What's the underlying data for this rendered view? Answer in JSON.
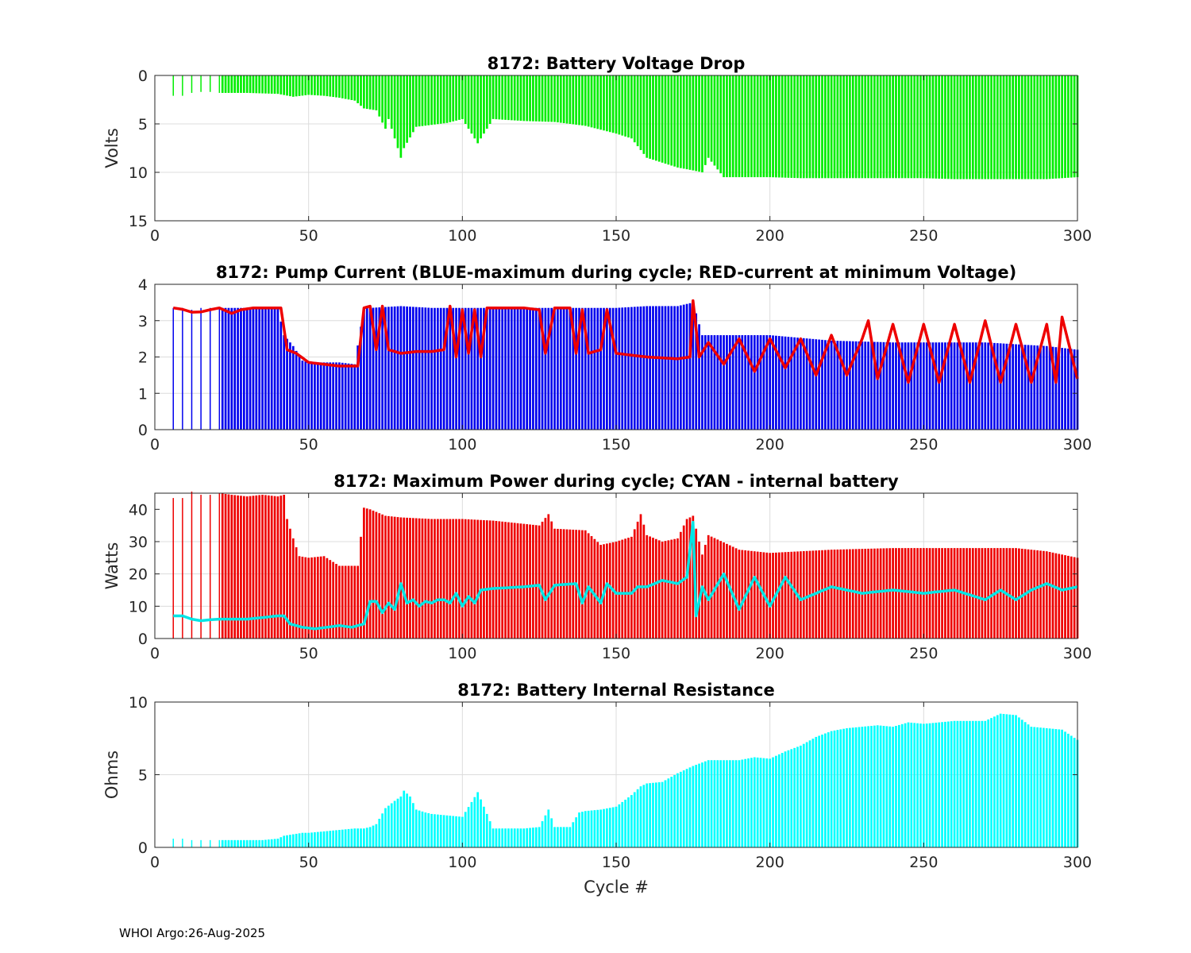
{
  "footer_text": "WHOI Argo:26-Aug-2025",
  "x_axis_label": "Cycle #",
  "colors": {
    "voltage_bars": "#00ee00",
    "current_bars": "#0000ee",
    "current_line": "#ee0000",
    "power_bars": "#ee0000",
    "power_line": "#00e5e5",
    "resistance_bars": "#00ffff",
    "grid": "#dcdcdc"
  },
  "chart_data": [
    {
      "type": "bar",
      "title": "8172: Battery Voltage Drop",
      "ylabel": "Volts",
      "xlabel": "",
      "xlim": [
        0,
        300
      ],
      "ylim": [
        0,
        15
      ],
      "y_reversed": true,
      "xticks": [
        0,
        50,
        100,
        150,
        200,
        250,
        300
      ],
      "yticks": [
        0,
        5,
        10,
        15
      ],
      "grid": true,
      "legend": "none",
      "series": [
        {
          "name": "Voltage drop (V)",
          "kind": "bar",
          "sample_note": "values per cycle, estimated from chart",
          "x": [
            6,
            9,
            12,
            15,
            18,
            21,
            30,
            40,
            45,
            50,
            55,
            60,
            65,
            68,
            70,
            72,
            75,
            76,
            78,
            80,
            81,
            85,
            90,
            95,
            100,
            105,
            110,
            120,
            130,
            140,
            150,
            155,
            160,
            165,
            170,
            175,
            178,
            180,
            185,
            190,
            195,
            200,
            210,
            220,
            230,
            240,
            250,
            260,
            270,
            280,
            290,
            300
          ],
          "values": [
            2.1,
            2.1,
            1.8,
            1.7,
            1.7,
            1.8,
            1.8,
            1.9,
            2.2,
            2.0,
            2.1,
            2.3,
            2.6,
            3.4,
            3.5,
            3.6,
            5.5,
            4.5,
            6.5,
            8.5,
            7.5,
            5.3,
            5.1,
            4.9,
            4.5,
            7.0,
            4.5,
            4.7,
            4.8,
            5.2,
            6.0,
            6.5,
            8.5,
            9.0,
            9.5,
            9.8,
            10.0,
            8.5,
            10.5,
            10.5,
            10.5,
            10.5,
            10.6,
            10.6,
            10.6,
            10.6,
            10.6,
            10.7,
            10.7,
            10.7,
            10.7,
            10.5
          ]
        }
      ]
    },
    {
      "type": "bar",
      "title": "8172: Pump Current (BLUE-maximum during cycle; RED-current at minimum Voltage)",
      "ylabel": "",
      "xlabel": "",
      "xlim": [
        0,
        300
      ],
      "ylim": [
        0,
        4
      ],
      "xticks": [
        0,
        50,
        100,
        150,
        200,
        250,
        300
      ],
      "yticks": [
        0,
        1,
        2,
        3,
        4
      ],
      "grid": true,
      "legend": "none",
      "series": [
        {
          "name": "maximum during cycle",
          "kind": "bar",
          "color_key": "current_bars",
          "x": [
            6,
            9,
            12,
            15,
            18,
            21,
            30,
            40,
            42,
            45,
            48,
            50,
            55,
            60,
            65,
            68,
            70,
            80,
            90,
            100,
            110,
            120,
            130,
            140,
            150,
            160,
            170,
            175,
            178,
            180,
            190,
            200,
            220,
            240,
            250,
            260,
            270,
            280,
            290,
            300
          ],
          "values": [
            3.35,
            3.35,
            3.3,
            3.35,
            3.35,
            3.35,
            3.35,
            3.35,
            2.6,
            2.3,
            1.9,
            1.85,
            1.85,
            1.85,
            1.8,
            3.35,
            3.35,
            3.4,
            3.35,
            3.35,
            3.35,
            3.35,
            3.35,
            3.35,
            3.35,
            3.4,
            3.4,
            3.5,
            2.6,
            2.6,
            2.6,
            2.6,
            2.45,
            2.4,
            2.4,
            2.4,
            2.4,
            2.35,
            2.3,
            2.2
          ]
        },
        {
          "name": "current at minimum Voltage",
          "kind": "line",
          "color_key": "current_line",
          "x": [
            6,
            10,
            13,
            18,
            21,
            25,
            28,
            32,
            36,
            41,
            43,
            46,
            50,
            55,
            60,
            66,
            68,
            70,
            72,
            74,
            76,
            80,
            85,
            90,
            94,
            96,
            98,
            100,
            102,
            104,
            106,
            108,
            120,
            125,
            127,
            130,
            135,
            137,
            139,
            141,
            145,
            147,
            150,
            160,
            170,
            174,
            175,
            177,
            180,
            185,
            190,
            195,
            200,
            205,
            210,
            215,
            220,
            225,
            230,
            232,
            235,
            240,
            245,
            250,
            255,
            260,
            265,
            270,
            275,
            280,
            285,
            290,
            293,
            295,
            300
          ],
          "values": [
            3.35,
            3.3,
            3.2,
            3.3,
            3.35,
            3.2,
            3.3,
            3.35,
            3.35,
            3.35,
            2.2,
            2.1,
            1.85,
            1.8,
            1.75,
            1.75,
            3.35,
            3.4,
            2.2,
            3.4,
            2.2,
            2.1,
            2.15,
            2.15,
            2.2,
            3.4,
            2.0,
            3.3,
            2.1,
            3.3,
            2.0,
            3.35,
            3.35,
            3.3,
            2.1,
            3.35,
            3.35,
            2.1,
            3.3,
            2.1,
            2.2,
            3.3,
            2.1,
            2.0,
            1.95,
            2.0,
            3.55,
            2.0,
            2.4,
            1.8,
            2.5,
            1.6,
            2.5,
            1.7,
            2.5,
            1.5,
            2.6,
            1.5,
            2.5,
            3.0,
            1.4,
            2.9,
            1.3,
            2.9,
            1.3,
            2.9,
            1.3,
            3.0,
            1.3,
            2.9,
            1.3,
            2.9,
            1.3,
            3.1,
            1.4
          ]
        }
      ]
    },
    {
      "type": "bar",
      "title": "8172: Maximum Power during cycle; CYAN - internal battery",
      "ylabel": "Watts",
      "xlabel": "",
      "xlim": [
        0,
        300
      ],
      "ylim": [
        0,
        45
      ],
      "xticks": [
        0,
        50,
        100,
        150,
        200,
        250,
        300
      ],
      "yticks": [
        0,
        10,
        20,
        30,
        40
      ],
      "grid": true,
      "legend": "none",
      "series": [
        {
          "name": "Maximum power (W)",
          "kind": "bar",
          "color_key": "power_bars",
          "x": [
            6,
            9,
            12,
            15,
            18,
            21,
            25,
            30,
            35,
            40,
            42,
            43,
            45,
            47,
            50,
            55,
            60,
            66,
            68,
            70,
            75,
            80,
            90,
            100,
            110,
            120,
            125,
            128,
            130,
            140,
            145,
            150,
            155,
            158,
            160,
            165,
            170,
            173,
            175,
            178,
            180,
            190,
            200,
            220,
            240,
            250,
            260,
            270,
            280,
            290,
            300
          ],
          "values": [
            43.5,
            43.5,
            45.5,
            44.5,
            44.5,
            45,
            44.5,
            44,
            44.5,
            44,
            44.5,
            37,
            31,
            25.5,
            25,
            25.5,
            22.5,
            22.5,
            40.5,
            40,
            38,
            37.5,
            37,
            37,
            36.5,
            35.5,
            35,
            38.5,
            34,
            33.5,
            29,
            30,
            31.5,
            38.5,
            32,
            30,
            31,
            37,
            38,
            26,
            32,
            27.5,
            26.5,
            27.5,
            28,
            28,
            28,
            28,
            28,
            27,
            25
          ]
        },
        {
          "name": "internal battery",
          "kind": "line",
          "color_key": "power_line",
          "x": [
            6,
            10,
            12,
            15,
            20,
            25,
            30,
            35,
            40,
            42,
            44,
            48,
            52,
            56,
            60,
            64,
            66,
            68,
            70,
            72,
            74,
            76,
            78,
            80,
            82,
            84,
            86,
            88,
            90,
            92,
            94,
            96,
            98,
            100,
            102,
            104,
            106,
            110,
            120,
            125,
            127,
            130,
            137,
            139,
            141,
            145,
            147,
            150,
            155,
            157,
            160,
            165,
            170,
            173,
            175,
            176,
            178,
            180,
            185,
            190,
            195,
            200,
            205,
            210,
            220,
            230,
            240,
            250,
            260,
            270,
            275,
            280,
            285,
            290,
            295,
            300
          ],
          "values": [
            7,
            7,
            6,
            5.5,
            6,
            6,
            6,
            6.5,
            7,
            7,
            4.5,
            3.5,
            3,
            3.5,
            4,
            3.5,
            4,
            4.5,
            11.5,
            11.5,
            8,
            11,
            9,
            17,
            11,
            12,
            10,
            11.5,
            11,
            12,
            12,
            11,
            14,
            10,
            13,
            11,
            15,
            15.5,
            16,
            16.5,
            12,
            16.5,
            17,
            11,
            16,
            11,
            17,
            14,
            14,
            16,
            16,
            18,
            17,
            19,
            36,
            7,
            16,
            12,
            20,
            9,
            19,
            10,
            19,
            12,
            16,
            14,
            15,
            14,
            15,
            12,
            15,
            12,
            15,
            17,
            15,
            16
          ]
        }
      ]
    },
    {
      "type": "bar",
      "title": "8172: Battery Internal Resistance",
      "ylabel": "Ohms",
      "xlabel": "Cycle #",
      "xlim": [
        0,
        300
      ],
      "ylim": [
        0,
        10
      ],
      "xticks": [
        0,
        50,
        100,
        150,
        200,
        250,
        300
      ],
      "yticks": [
        0,
        5,
        10
      ],
      "grid": true,
      "legend": "none",
      "series": [
        {
          "name": "Internal resistance (ohm)",
          "kind": "bar",
          "color_key": "resistance_bars",
          "x": [
            6,
            9,
            12,
            15,
            18,
            21,
            25,
            30,
            35,
            40,
            42,
            45,
            48,
            50,
            55,
            60,
            65,
            68,
            70,
            72,
            75,
            78,
            80,
            81,
            83,
            85,
            88,
            90,
            95,
            100,
            105,
            110,
            120,
            125,
            128,
            130,
            135,
            138,
            140,
            145,
            150,
            155,
            158,
            160,
            165,
            170,
            175,
            180,
            185,
            190,
            195,
            200,
            205,
            210,
            215,
            220,
            225,
            230,
            235,
            240,
            245,
            250,
            255,
            260,
            265,
            270,
            275,
            280,
            285,
            290,
            295,
            300
          ],
          "values": [
            0.6,
            0.6,
            0.5,
            0.5,
            0.5,
            0.5,
            0.5,
            0.5,
            0.5,
            0.6,
            0.8,
            0.9,
            1.0,
            1.0,
            1.1,
            1.2,
            1.3,
            1.3,
            1.4,
            1.6,
            2.7,
            3.2,
            3.5,
            3.9,
            3.5,
            2.6,
            2.4,
            2.3,
            2.2,
            2.1,
            3.8,
            1.3,
            1.3,
            1.4,
            2.6,
            1.4,
            1.4,
            2.4,
            2.5,
            2.6,
            2.8,
            3.6,
            4.2,
            4.4,
            4.5,
            5.1,
            5.6,
            6.0,
            6.0,
            6.0,
            6.2,
            6.1,
            6.6,
            7.0,
            7.6,
            8.0,
            8.2,
            8.3,
            8.4,
            8.3,
            8.6,
            8.5,
            8.6,
            8.7,
            8.7,
            8.7,
            9.2,
            9.1,
            8.3,
            8.2,
            8.1,
            7.4
          ]
        }
      ]
    }
  ]
}
